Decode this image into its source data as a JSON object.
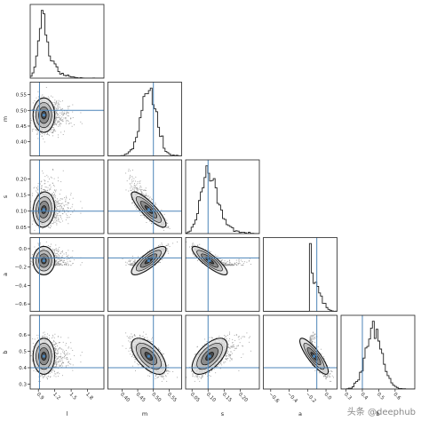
{
  "watermark": "头条 @deephub",
  "chart_data": {
    "type": "scatter",
    "title": "",
    "truth_line_color": "#4c84b8",
    "params": [
      {
        "name": "l",
        "label": "l",
        "range": [
          0.75,
          2.1
        ],
        "ticks": [
          0.9,
          1.2,
          1.5,
          1.8
        ],
        "tick_labels": [
          "0.9",
          "1.2",
          "1.5",
          "1.8"
        ],
        "truth": 0.92,
        "mean": 1.0,
        "sd": 0.09,
        "skew": 2.5
      },
      {
        "name": "m",
        "label": "m",
        "range": [
          0.355,
          0.59
        ],
        "ticks": [
          0.4,
          0.45,
          0.5,
          0.55
        ],
        "tick_labels": [
          "0.40",
          "0.45",
          "0.50",
          "0.55"
        ],
        "truth": 0.5,
        "mean": 0.485,
        "sd": 0.025,
        "skew": 0
      },
      {
        "name": "s",
        "label": "s",
        "range": [
          0.03,
          0.26
        ],
        "ticks": [
          0.05,
          0.1,
          0.15,
          0.2
        ],
        "tick_labels": [
          "0.05",
          "0.10",
          "0.15",
          "0.20"
        ],
        "truth": 0.1,
        "mean": 0.105,
        "sd": 0.025,
        "skew": 0.8
      },
      {
        "name": "a",
        "label": "a",
        "range": [
          -0.68,
          0.12
        ],
        "ticks": [
          -0.6,
          -0.4,
          -0.2,
          0.0
        ],
        "tick_labels": [
          "−0.6",
          "−0.4",
          "−0.2",
          "0.0"
        ],
        "truth": -0.1,
        "mean": -0.13,
        "sd": 0.07,
        "skew": -1.5
      },
      {
        "name": "b",
        "label": "b",
        "range": [
          0.27,
          0.72
        ],
        "ticks": [
          0.3,
          0.4,
          0.5,
          0.6
        ],
        "tick_labels": [
          "0.3",
          "0.4",
          "0.5",
          "0.6"
        ],
        "truth": 0.4,
        "mean": 0.47,
        "sd": 0.05,
        "skew": 0
      }
    ],
    "pair_correlations": [
      {
        "x": "l",
        "y": "m",
        "rho": 0.0
      },
      {
        "x": "l",
        "y": "s",
        "rho": 0.1
      },
      {
        "x": "m",
        "y": "s",
        "rho": -0.85
      },
      {
        "x": "l",
        "y": "a",
        "rho": 0.0
      },
      {
        "x": "m",
        "y": "a",
        "rho": 0.8
      },
      {
        "x": "s",
        "y": "a",
        "rho": -0.85
      },
      {
        "x": "l",
        "y": "b",
        "rho": 0.0
      },
      {
        "x": "m",
        "y": "b",
        "rho": -0.6
      },
      {
        "x": "s",
        "y": "b",
        "rho": 0.6
      },
      {
        "x": "a",
        "y": "b",
        "rho": -0.85
      }
    ]
  }
}
